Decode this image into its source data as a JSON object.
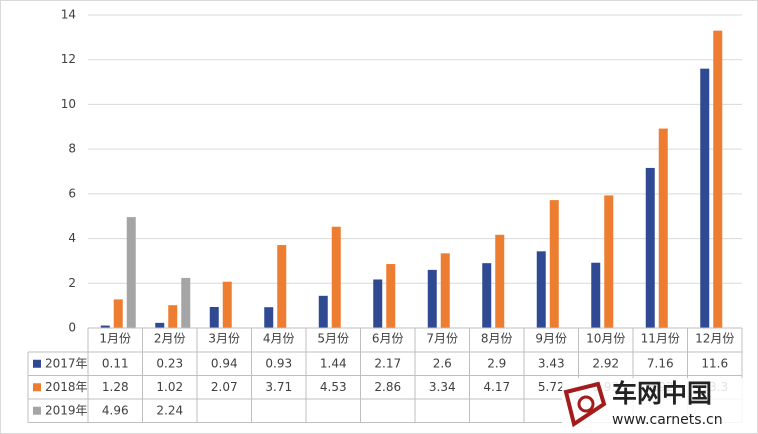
{
  "chart_data": {
    "type": "bar",
    "categories": [
      "1月份",
      "2月份",
      "3月份",
      "4月份",
      "5月份",
      "6月份",
      "7月份",
      "8月份",
      "9月份",
      "10月份",
      "11月份",
      "12月份"
    ],
    "series": [
      {
        "name": "2017年",
        "color": "#2f4a93",
        "values": [
          0.11,
          0.23,
          0.94,
          0.93,
          1.44,
          2.17,
          2.6,
          2.9,
          3.43,
          2.92,
          7.16,
          11.6
        ]
      },
      {
        "name": "2018年",
        "color": "#ed7d31",
        "values": [
          1.28,
          1.02,
          2.07,
          3.71,
          4.53,
          2.86,
          3.34,
          4.17,
          5.72,
          5.93,
          8.92,
          13.3
        ]
      },
      {
        "name": "2019年",
        "color": "#a5a5a5",
        "values": [
          4.96,
          2.24,
          null,
          null,
          null,
          null,
          null,
          null,
          null,
          null,
          null,
          null
        ]
      }
    ],
    "ylim": [
      0,
      14
    ],
    "yticks": [
      0,
      2,
      4,
      6,
      8,
      10,
      12,
      14
    ],
    "grid": true,
    "watermark": {
      "title": "车网中国",
      "url": "www.carnets.cn"
    }
  }
}
